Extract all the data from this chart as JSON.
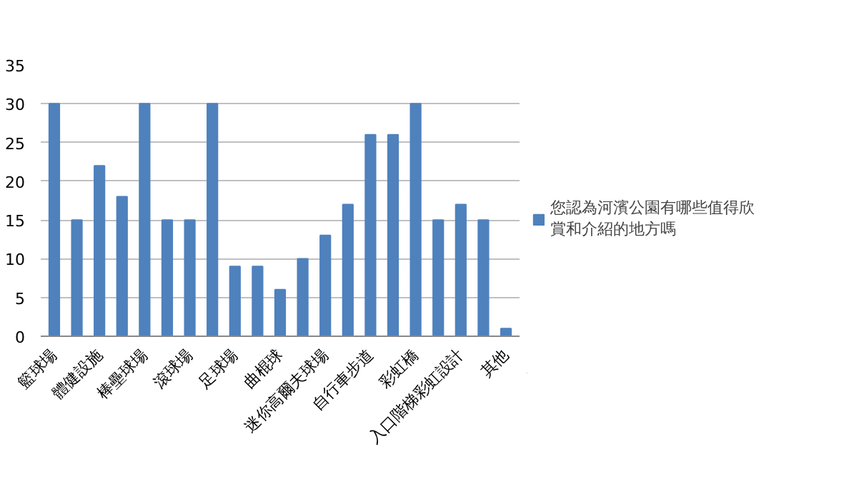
{
  "chart_data": {
    "type": "bar",
    "categories": [
      "籃球場",
      null,
      "體健設施",
      null,
      "棒壘球場",
      null,
      "滾球場",
      null,
      "足球場",
      null,
      "曲棍球",
      null,
      "迷你高爾夫球場",
      null,
      "自行車步道",
      null,
      "彩虹橋",
      null,
      "入口階梯彩虹設計",
      null,
      "其他"
    ],
    "series": [
      {
        "name": "您認為河濱公園有哪些值得欣賞和介紹的地方嗎",
        "color": "#4f81bd",
        "values": [
          30,
          15,
          22,
          18,
          30,
          15,
          15,
          30,
          9,
          9,
          6,
          10,
          13,
          17,
          26,
          26,
          30,
          15,
          17,
          15,
          1
        ]
      }
    ],
    "ylim": [
      0,
      35
    ],
    "yticks": [
      0,
      5,
      10,
      15,
      20,
      25,
      30,
      35
    ],
    "grid": "y",
    "legend": "right"
  }
}
